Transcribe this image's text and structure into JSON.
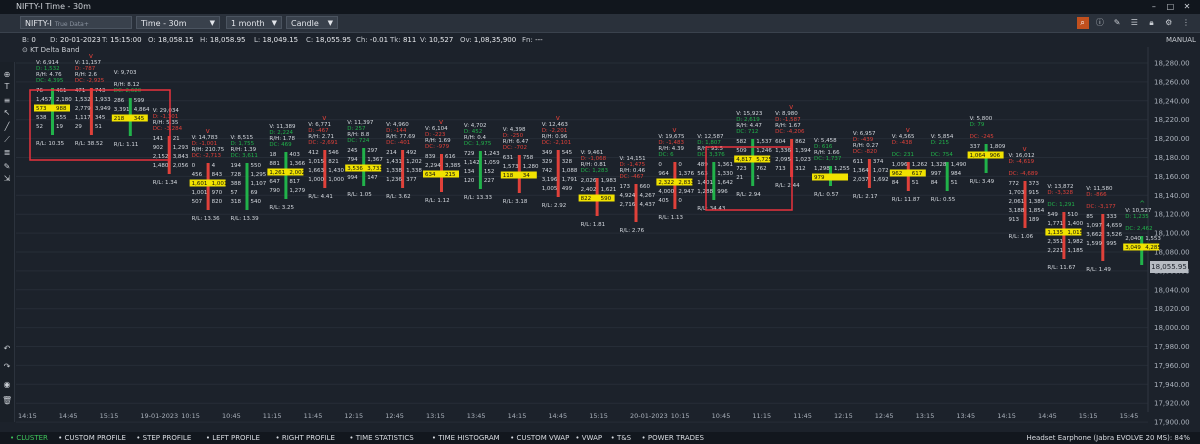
{
  "window": {
    "title": "NIFTY-I Time - 30m"
  },
  "toolbar": {
    "symbol": "NIFTY-I",
    "symbol_sub": "True Data+",
    "timeframe": "Time - 30m",
    "range": "1 month",
    "chart_type": "Candle",
    "scale_label": "MANUAL"
  },
  "info": {
    "bar_label": "B:",
    "bar": "0",
    "date_label": "D:",
    "date": "20-01-2023",
    "time_label": "T:",
    "time": "15:15:00",
    "open_label": "O:",
    "open": "18,058.15",
    "high_label": "H:",
    "high": "18,058.95",
    "low_label": "L:",
    "low": "18,049.15",
    "close_label": "C:",
    "close": "18,055.95",
    "change_label": "Ch:",
    "change": "-0.01",
    "ticks_label": "Tk:",
    "ticks": "811",
    "volume_label": "V:",
    "volume": "10,527",
    "oi_label": "Ov:",
    "oi": "1,08,35,900",
    "fn_label": "Fn:",
    "fn": "---"
  },
  "study": {
    "name": "KT Delta Band"
  },
  "left_tools": [
    "40",
    "51",
    "75",
    "-41",
    "74",
    "71",
    "35",
    "20",
    "155",
    "74"
  ],
  "colors": {
    "up": "#21b24a",
    "down": "#e0413a",
    "highlight": "#f1e200",
    "box": "#e8323c",
    "bg": "#1c222b",
    "accent": "#c1501e"
  },
  "chart_data": {
    "type": "footprint-candle",
    "price_axis": [
      "18,280.00",
      "18,260.00",
      "18,240.00",
      "18,220.00",
      "18,200.00",
      "18,180.00",
      "18,160.00",
      "18,140.00",
      "18,120.00",
      "18,100.00",
      "18,080.00",
      "18,060.00",
      "18,040.00",
      "18,020.00",
      "18,000.00",
      "17,980.00",
      "17,960.00",
      "17,940.00",
      "17,920.00",
      "17,900.00"
    ],
    "last_price": "18,055.95",
    "time_axis": [
      "14:15",
      "14:45",
      "15:15",
      "19-01-2023",
      "10:15",
      "10:45",
      "11:15",
      "11:45",
      "12:15",
      "12:45",
      "13:15",
      "13:45",
      "14:15",
      "14:45",
      "15:15",
      "20-01-2023",
      "10:15",
      "10:45",
      "11:15",
      "11:45",
      "12:15",
      "12:45",
      "13:15",
      "13:45",
      "14:15",
      "14:45",
      "15:15",
      "15:45"
    ],
    "stats": [
      {
        "v": "V: 6,914",
        "d": "D: 1,532",
        "ds": "up",
        "dc": "DC: 4,395",
        "dcs": "up"
      },
      {
        "v": "V: 11,157",
        "d": "D: -787",
        "ds": "down",
        "dc": "DC: -2,925",
        "dcs": "down"
      },
      {
        "v": "V: 9,703",
        "d": "",
        "ds": "up",
        "dc": "DC: 2,620",
        "dcs": "up"
      },
      {
        "v": "V: 29,034",
        "d": "D: -1,301",
        "ds": "down",
        "dc": "DC: -3,284",
        "dcs": "down"
      },
      {
        "v": "V: 14,783",
        "d": "D: -1,001",
        "ds": "down",
        "dc": "DC: -2,713",
        "dcs": "down"
      },
      {
        "v": "V: 8,515",
        "d": "D: 1,755",
        "ds": "up",
        "dc": "DC: 3,611",
        "dcs": "up"
      },
      {
        "v": "V: 11,389",
        "d": "D: 2,224",
        "ds": "up",
        "dc": "DC: 469",
        "dcs": "up"
      },
      {
        "v": "V: 6,771",
        "d": "D: -467",
        "ds": "down",
        "dc": "DC: -2,691",
        "dcs": "down"
      },
      {
        "v": "V: 11,397",
        "d": "D: 257",
        "ds": "up",
        "dc": "DC: 724",
        "dcs": "up"
      },
      {
        "v": "V: 4,960",
        "d": "D: -144",
        "ds": "down",
        "dc": "DC: -401",
        "dcs": "down"
      },
      {
        "v": "V: 6,104",
        "d": "D: -223",
        "ds": "down",
        "dc": "DC: -979",
        "dcs": "down"
      },
      {
        "v": "V: 4,702",
        "d": "D: 452",
        "ds": "up",
        "dc": "DC: 1,975",
        "dcs": "up"
      },
      {
        "v": "V: 4,398",
        "d": "D: -250",
        "ds": "down",
        "dc": "DC: -702",
        "dcs": "down"
      },
      {
        "v": "V: 12,463",
        "d": "D: -2,201",
        "ds": "down",
        "dc": "DC: -2,101",
        "dcs": "down"
      },
      {
        "v": "V: 9,461",
        "d": "D: -1,068",
        "ds": "down",
        "dc": "DC: 1,283",
        "dcs": "up"
      },
      {
        "v": "V: 14,151",
        "d": "D: -1,475",
        "ds": "down",
        "dc": "DC: -467",
        "dcs": "down"
      },
      {
        "v": "V: 19,675",
        "d": "D: -1,483",
        "ds": "down",
        "dc": "DC: 6",
        "dcs": "up"
      },
      {
        "v": "V: 12,587",
        "d": "D: 1,807",
        "ds": "up",
        "dc": "DC: 3,376",
        "dcs": "up"
      },
      {
        "v": "V: 15,923",
        "d": "D: 2,619",
        "ds": "up",
        "dc": "DC: 712",
        "dcs": "up"
      },
      {
        "v": "V: 8,980",
        "d": "D: -1,587",
        "ds": "down",
        "dc": "DC: -4,206",
        "dcs": "down"
      },
      {
        "v": "V: 5,458",
        "d": "D: 616",
        "ds": "up",
        "dc": "DC: 1,737",
        "dcs": "up"
      },
      {
        "v": "V: 6,957",
        "d": "D: -439",
        "ds": "down",
        "dc": "DC: -820",
        "dcs": "down"
      },
      {
        "v": "V: 4,565",
        "d": "D: -438",
        "ds": "down",
        "dc": "DC: 231",
        "dcs": "up"
      },
      {
        "v": "V: 5,854",
        "d": "D: 215",
        "ds": "up",
        "dc": "DC: 754",
        "dcs": "up"
      },
      {
        "v": "V: 5,800",
        "d": "D: 79",
        "ds": "up",
        "dc": "DC: -245",
        "dcs": "down"
      },
      {
        "v": "V: 16,012",
        "d": "D: -4,619",
        "ds": "down",
        "dc": "DC: -4,689",
        "dcs": "down"
      },
      {
        "v": "V: 13,872",
        "d": "D: -3,328",
        "ds": "down",
        "dc": "DC: 1,291",
        "dcs": "up"
      },
      {
        "v": "V: 11,580",
        "d": "D: -866",
        "ds": "down",
        "dc": "DC: -3,177",
        "dcs": "down"
      },
      {
        "v": "V: 10,527",
        "d": "D: 1,235",
        "ds": "up",
        "dc": "DC: 2,462",
        "dcs": "up"
      }
    ],
    "ratios": [
      "R/L: 10.35",
      "R/L: 38.52",
      "R/L: 1.11",
      "R/L: 1.34",
      "R/L: 13.36",
      "R/L: 13.39",
      "R/L: 3.25",
      "R/L: 4.41",
      "R/L: 1.05",
      "R/L: 3.62",
      "R/L: 1.12",
      "R/L: 13.33",
      "R/L: 3.18",
      "R/L: 2.92",
      "R/L: 1.81",
      "R/L: 2.76",
      "R/L: 1.13",
      "R/L: 34.43",
      "R/L: 2.94",
      "R/L: 2.44",
      "R/L: 0.57",
      "R/L: 2.17",
      "R/L: 11.87",
      "R/L: 0.55",
      "R/L: 3.49",
      "R/L: 1.06",
      "R/L: 11.67",
      "R/L: 1.49"
    ],
    "rh": [
      "R/H: 4.76",
      "R/H: 2.6",
      "R/H: 8.12",
      "R/H: 5.35",
      "R/H: 210.75",
      "R/H: 1.39",
      "R/H: 1.78",
      "R/H: 2.71",
      "R/H: 8.8",
      "R/H: 77.69",
      "R/H: 1.69",
      "R/H: 0.4",
      "R/H: 6.47",
      "R/H: 0.96",
      "R/H: 0.81",
      "R/H: 0.46",
      "R/H: 4.39",
      "R/H: 93.5",
      "R/H: 4.47",
      "R/H: 1.67",
      "R/H: 1.66",
      "R/H: 0.27"
    ]
  },
  "tabs": [
    {
      "label": "CLUSTER",
      "active": true
    },
    {
      "label": "CUSTOM PROFILE",
      "active": false
    },
    {
      "label": "STEP PROFILE",
      "active": false
    },
    {
      "label": "LEFT PROFILE",
      "active": false
    },
    {
      "label": "RIGHT PROFILE",
      "active": false
    },
    {
      "label": "TIME STATISTICS",
      "active": false
    },
    {
      "label": "TIME HISTOGRAM",
      "active": false
    },
    {
      "label": "CUSTOM VWAP",
      "active": false
    },
    {
      "label": "VWAP",
      "active": false
    },
    {
      "label": "T&S",
      "active": false
    },
    {
      "label": "POWER TRADES",
      "active": false
    }
  ],
  "status": {
    "device": "Headset Earphone (Jabra EVOLVE 20 MS): 84%"
  }
}
